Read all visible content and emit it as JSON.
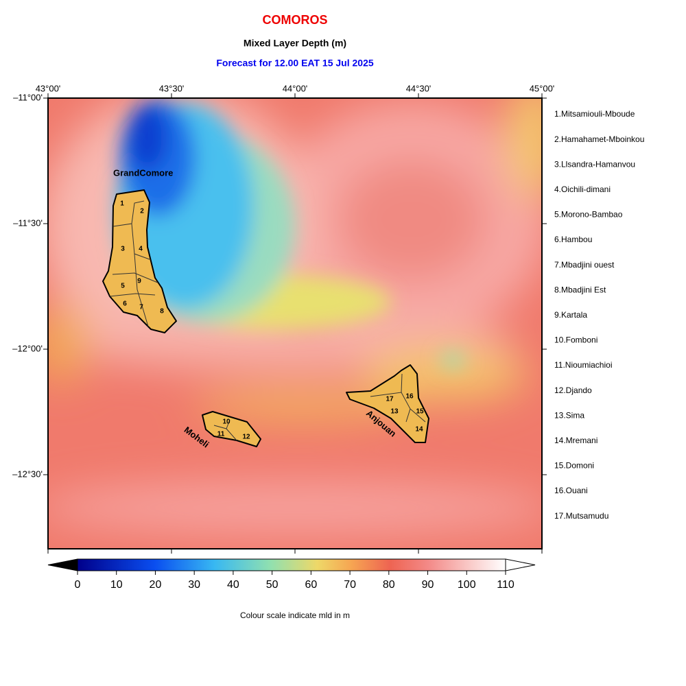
{
  "header": {
    "title": "COMOROS",
    "subtitle": "Mixed Layer Depth (m)",
    "forecast": "Forecast for  12.00 EAT 15 Jul 2025"
  },
  "map": {
    "lon_labels": [
      "43°00'",
      "43°30'",
      "44°00'",
      "44°30'",
      "45°00'"
    ],
    "lat_labels": [
      "–11°00'",
      "–11°30'",
      "–12°00'",
      "–12°30'"
    ],
    "islands": [
      "GrandComore",
      "Moheli",
      "Anjouan"
    ],
    "district_numbers": [
      "1",
      "2",
      "3",
      "4",
      "5",
      "6",
      "7",
      "8",
      "9",
      "10",
      "11",
      "12",
      "13",
      "14",
      "15",
      "16",
      "17"
    ]
  },
  "regions": [
    "1.Mitsamiouli-Mboude",
    "2.Hamahamet-Mboinkou",
    "3.Llsandra-Hamanvou",
    "4.Oichili-dimani",
    "5.Morono-Bambao",
    "6.Hambou",
    "7.Mbadjini ouest",
    "8.Mbadjini Est",
    "9.Kartala",
    "10.Fomboni",
    "11.Nioumiachioi",
    "12.Djando",
    "13.Sima",
    "14.Mremani",
    "15.Domoni",
    "16.Ouani",
    "17.Mutsamudu"
  ],
  "colorbar": {
    "ticks": [
      "0",
      "10",
      "20",
      "30",
      "40",
      "50",
      "60",
      "70",
      "80",
      "90",
      "100",
      "110"
    ],
    "caption": "Colour scale indicate mld in m"
  }
}
